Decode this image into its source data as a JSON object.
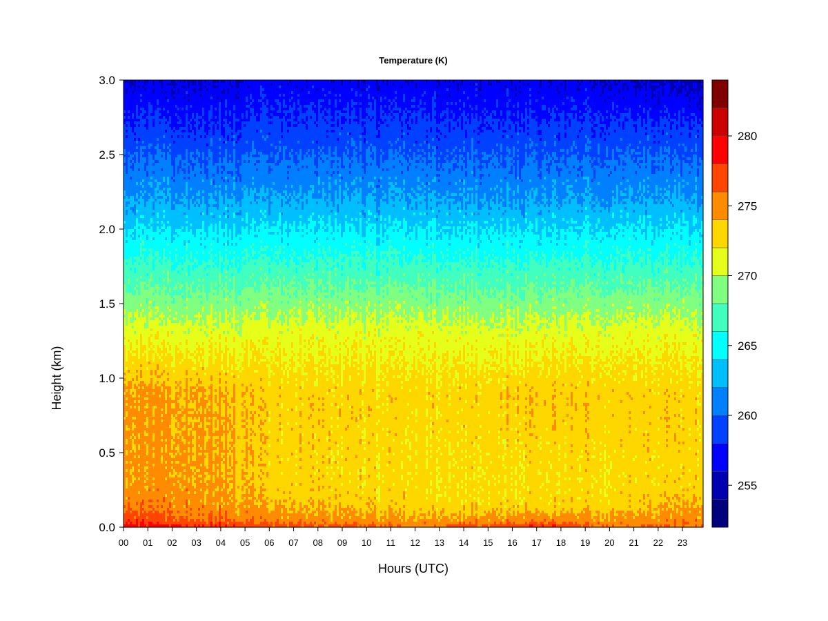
{
  "chart_data": {
    "type": "heatmap",
    "title": "Temperature (K)",
    "xlabel": "Hours (UTC)",
    "ylabel": "Height (km)",
    "x_ticks": [
      "00",
      "01",
      "02",
      "03",
      "04",
      "05",
      "06",
      "07",
      "08",
      "09",
      "10",
      "11",
      "12",
      "13",
      "14",
      "15",
      "16",
      "17",
      "18",
      "19",
      "20",
      "21",
      "22",
      "23"
    ],
    "y_ticks": [
      "0.0",
      "0.5",
      "1.0",
      "1.5",
      "2.0",
      "2.5",
      "3.0"
    ],
    "xlim": [
      0,
      23.85
    ],
    "ylim": [
      0,
      3.0
    ],
    "colorbar": {
      "ticks": [
        "255",
        "260",
        "265",
        "270",
        "275",
        "280"
      ],
      "range": [
        252,
        284
      ],
      "levels": [
        252,
        254,
        256,
        258,
        260,
        262,
        264,
        266,
        268,
        270,
        272,
        274,
        276,
        278,
        280,
        282,
        284
      ],
      "colors": [
        "#00007f",
        "#0000b2",
        "#0000ff",
        "#0040ff",
        "#0080ff",
        "#00bfff",
        "#00ffff",
        "#40ffbf",
        "#80ff80",
        "#e6ff1a",
        "#ffd700",
        "#ff8c00",
        "#ff4500",
        "#ff0000",
        "#cc0000",
        "#800000"
      ]
    },
    "grid": false,
    "legend": "right colorbar",
    "profiles": [
      {
        "hour": 0,
        "heights": [
          0,
          0.05,
          0.15,
          0.3,
          0.9,
          1.3,
          1.6,
          1.9,
          2.2,
          2.6,
          3.0
        ],
        "temps": [
          279,
          277,
          275.5,
          274.5,
          274.5,
          271,
          268,
          265,
          262,
          259,
          256
        ]
      },
      {
        "hour": 4,
        "heights": [
          0,
          0.05,
          0.15,
          0.3,
          0.9,
          1.3,
          1.6,
          1.9,
          2.2,
          2.6,
          3.0
        ],
        "temps": [
          278,
          276,
          274.8,
          274.5,
          274.2,
          271,
          268,
          265,
          262,
          259,
          256
        ]
      },
      {
        "hour": 6,
        "heights": [
          0,
          0.05,
          0.15,
          0.3,
          0.9,
          1.3,
          1.6,
          1.9,
          2.2,
          2.6,
          3.0
        ],
        "temps": [
          277,
          275,
          273.8,
          273,
          273,
          271,
          268,
          265,
          262,
          259,
          256.5
        ]
      },
      {
        "hour": 12,
        "heights": [
          0,
          0.05,
          0.15,
          0.3,
          0.9,
          1.3,
          1.6,
          1.9,
          2.2,
          2.6,
          3.0
        ],
        "temps": [
          276,
          274.2,
          272.8,
          272.5,
          272.8,
          271,
          268,
          265,
          262,
          259,
          256.5
        ]
      },
      {
        "hour": 17,
        "heights": [
          0,
          0.05,
          0.15,
          0.3,
          0.9,
          1.3,
          1.6,
          1.9,
          2.2,
          2.6,
          3.0
        ],
        "temps": [
          278,
          275,
          273,
          272.6,
          273.5,
          271,
          268,
          265,
          262,
          259,
          256.5
        ]
      },
      {
        "hour": 20,
        "heights": [
          0,
          0.05,
          0.15,
          0.3,
          0.9,
          1.3,
          1.6,
          1.9,
          2.2,
          2.6,
          3.0
        ],
        "temps": [
          276,
          274.5,
          273,
          272.6,
          273.2,
          271,
          268,
          265,
          262,
          259,
          256
        ]
      },
      {
        "hour": 23.85,
        "heights": [
          0,
          0.05,
          0.15,
          0.3,
          0.9,
          1.3,
          1.6,
          1.9,
          2.2,
          2.6,
          3.0
        ],
        "temps": [
          276,
          275,
          274,
          273,
          272.8,
          271,
          268,
          265,
          262,
          259,
          255
        ]
      }
    ]
  }
}
